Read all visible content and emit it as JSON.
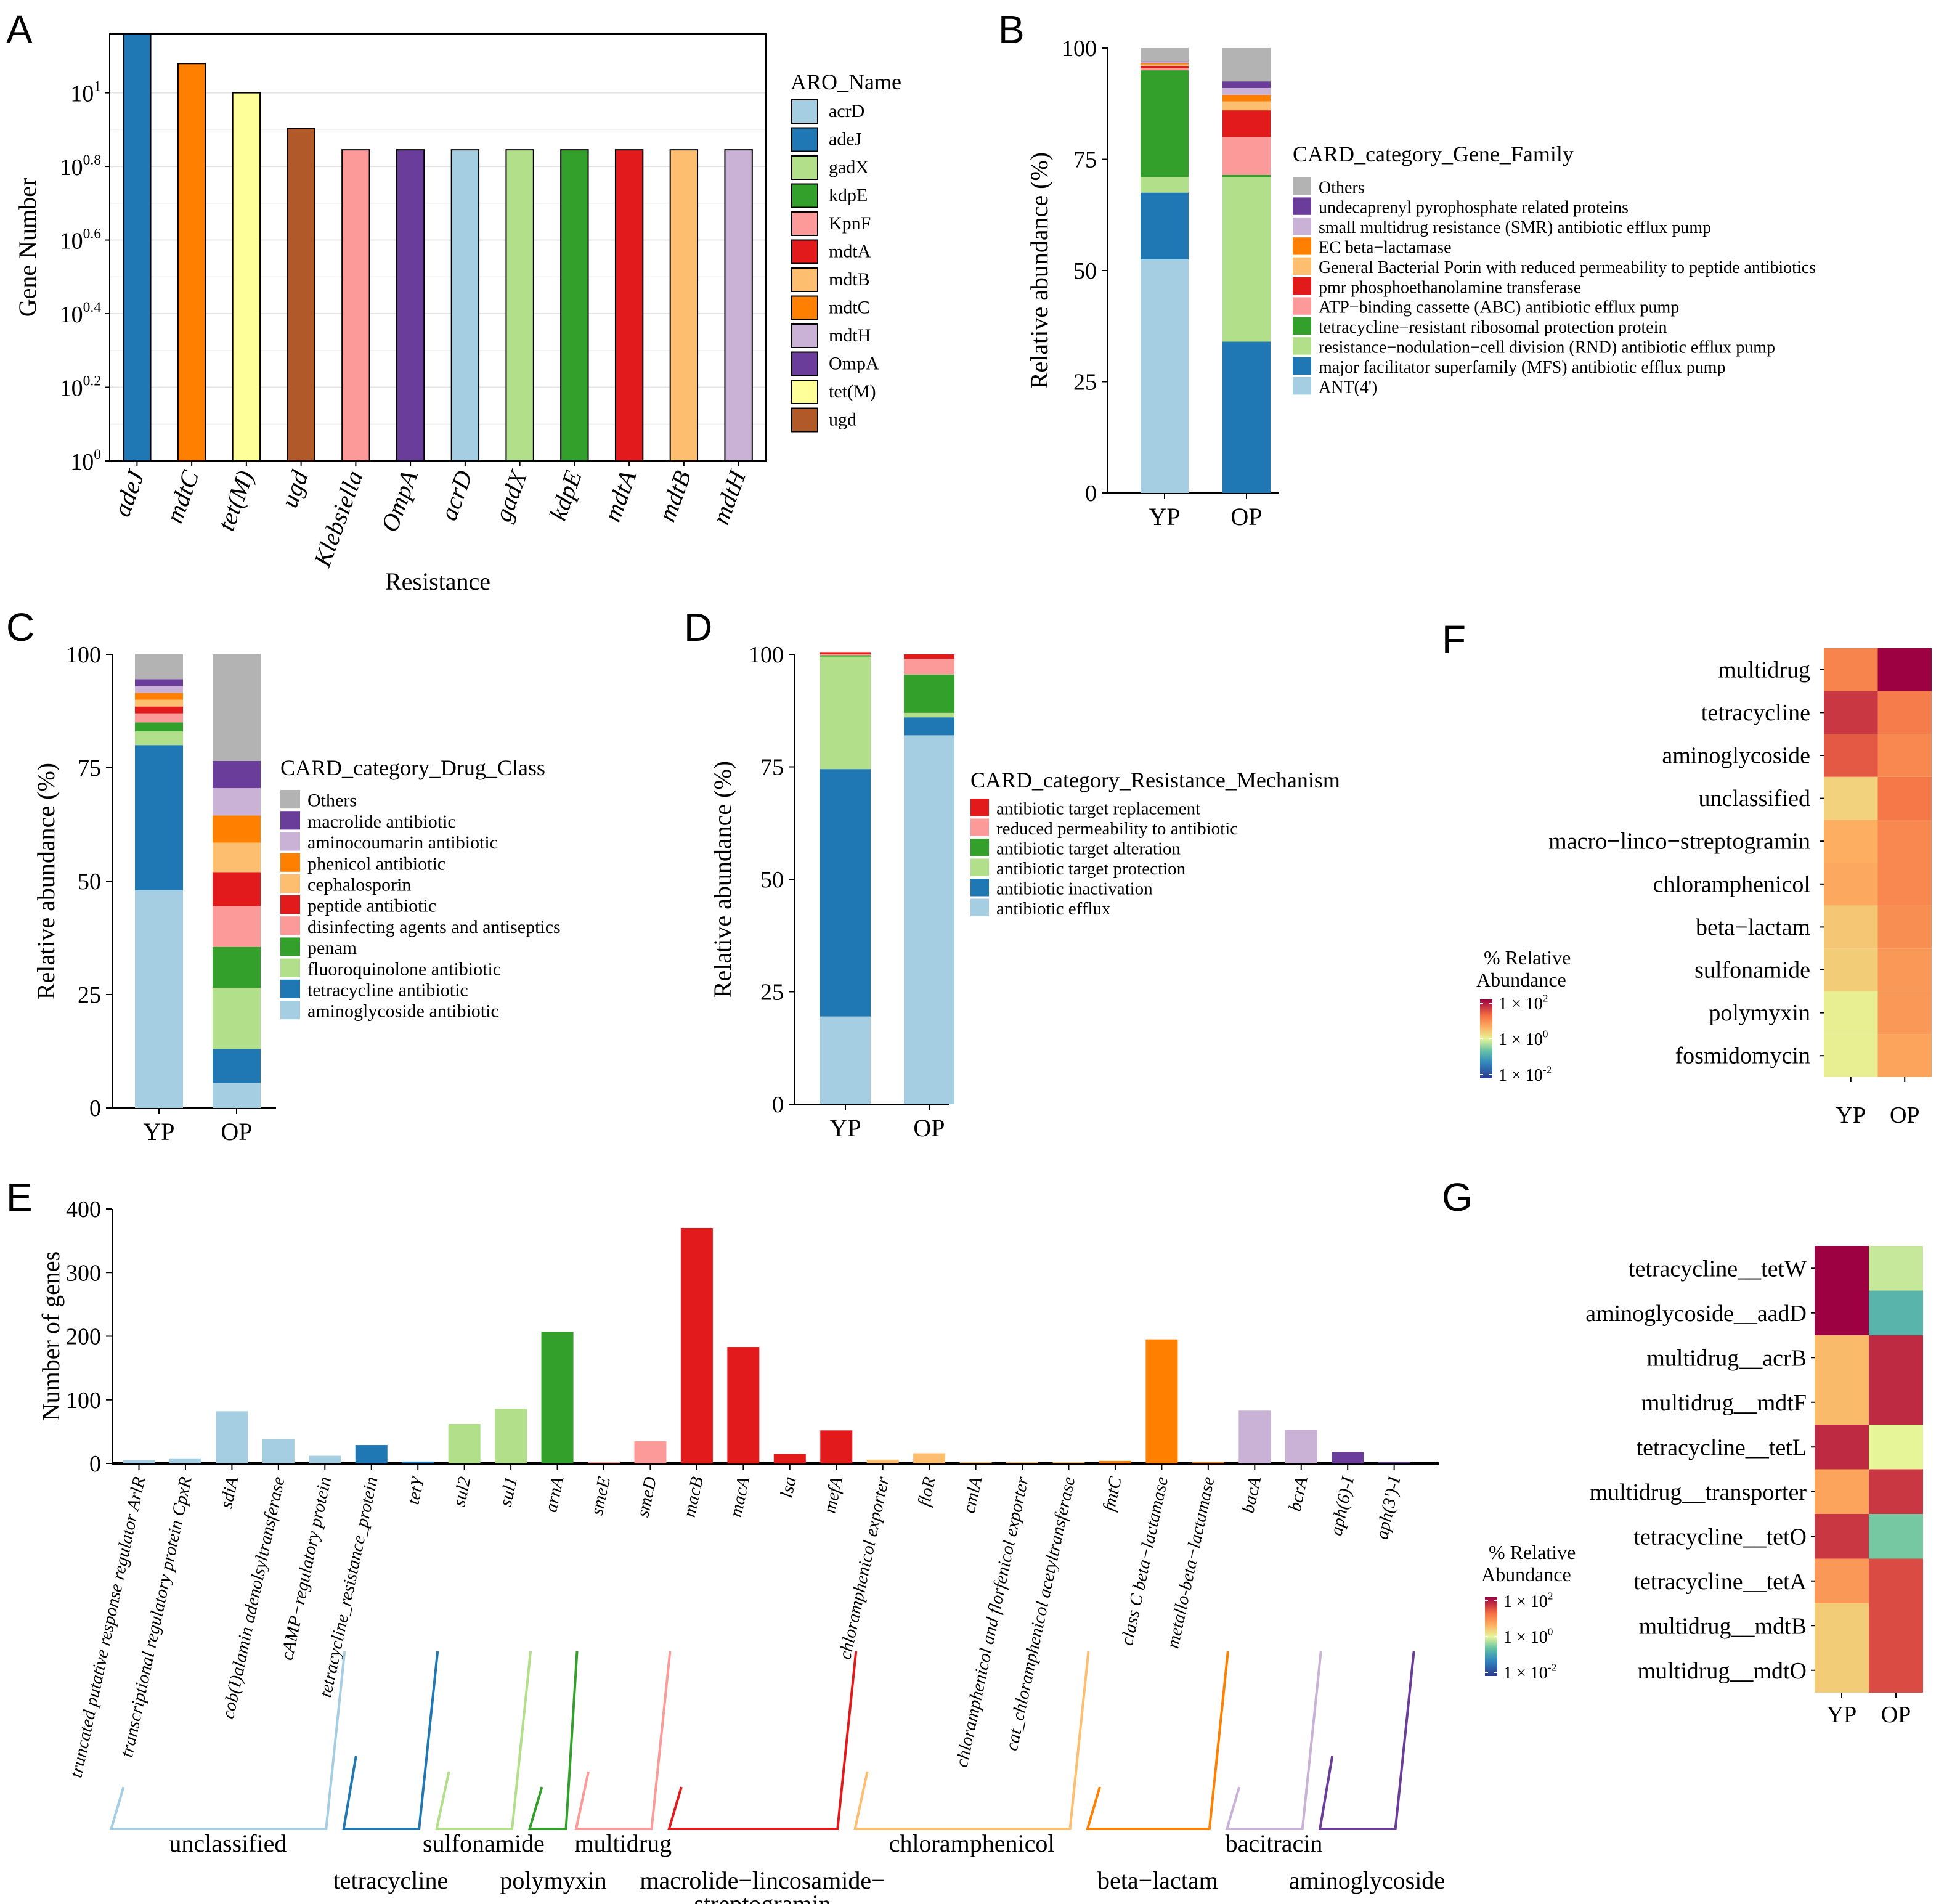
{
  "figure_labels": [
    "A",
    "B",
    "C",
    "D",
    "E",
    "F",
    "G"
  ],
  "chart_data": [
    {
      "panel": "A",
      "type": "bar",
      "xlabel": "Resistance",
      "ylabel": "Gene Number",
      "yscale": "log10",
      "ylim_exp": [
        0,
        1.16
      ],
      "yticks": [
        {
          "base": "10",
          "exp": "0"
        },
        {
          "base": "10",
          "exp": "0.2"
        },
        {
          "base": "10",
          "exp": "0.4"
        },
        {
          "base": "10",
          "exp": "0.6"
        },
        {
          "base": "10",
          "exp": "0.8"
        },
        {
          "base": "10",
          "exp": "1"
        }
      ],
      "categories": [
        "adeJ",
        "mdtC",
        "tet(M)",
        "ugd",
        "Klebsiella",
        "OmpA",
        "acrD",
        "gadX",
        "kdpE",
        "mdtA",
        "mdtB",
        "mdtH"
      ],
      "values": [
        15,
        12,
        10,
        8,
        7,
        7,
        7,
        7,
        7,
        7,
        7,
        7
      ],
      "bar_keys": [
        "adeJ",
        "mdtC",
        "tet(M)",
        "ugd",
        "KpnF",
        "OmpA",
        "acrD",
        "gadX",
        "kdpE",
        "mdtA",
        "mdtB",
        "mdtH"
      ],
      "legend_title": "ARO_Name",
      "legend": [
        {
          "name": "acrD",
          "color": "#a6cee3"
        },
        {
          "name": "adeJ",
          "color": "#1f78b4"
        },
        {
          "name": "gadX",
          "color": "#b2df8a"
        },
        {
          "name": "kdpE",
          "color": "#33a02c"
        },
        {
          "name": "KpnF",
          "color": "#fb9a99"
        },
        {
          "name": "mdtA",
          "color": "#e31a1c"
        },
        {
          "name": "mdtB",
          "color": "#fdbf6f"
        },
        {
          "name": "mdtC",
          "color": "#ff7f00"
        },
        {
          "name": "mdtH",
          "color": "#cab2d6"
        },
        {
          "name": "OmpA",
          "color": "#6a3d9a"
        },
        {
          "name": "tet(M)",
          "color": "#ffff99"
        },
        {
          "name": "ugd",
          "color": "#b15928"
        }
      ]
    },
    {
      "panel": "B",
      "type": "stacked_bar",
      "ylabel": "Relative abundance (%)",
      "ylim": [
        0,
        100
      ],
      "yticks": [
        0,
        25,
        50,
        75,
        100
      ],
      "categories": [
        "YP",
        "OP"
      ],
      "legend_title": "CARD_category_Gene_Family",
      "series": [
        {
          "name": "ANT(4')",
          "color": "#a6cee3",
          "values": [
            52.5,
            0
          ]
        },
        {
          "name": "major facilitator superfamily (MFS) antibiotic efflux pump",
          "color": "#1f78b4",
          "values": [
            15,
            34
          ]
        },
        {
          "name": "resistance−nodulation−cell division (RND) antibiotic efflux pump",
          "color": "#b2df8a",
          "values": [
            3.5,
            37
          ]
        },
        {
          "name": "tetracycline−resistant ribosomal protection protein",
          "color": "#33a02c",
          "values": [
            24,
            0.5
          ]
        },
        {
          "name": "ATP−binding cassette (ABC) antibiotic efflux pump",
          "color": "#fb9a99",
          "values": [
            0.5,
            8.5
          ]
        },
        {
          "name": "pmr phosphoethanolamine transferase",
          "color": "#e31a1c",
          "values": [
            0.5,
            6
          ]
        },
        {
          "name": "General Bacterial Porin with reduced permeability to peptide antibiotics",
          "color": "#fdbf6f",
          "values": [
            0.3,
            2
          ]
        },
        {
          "name": "EC beta−lactamase",
          "color": "#ff7f00",
          "values": [
            0.3,
            1.5
          ]
        },
        {
          "name": "small multidrug resistance (SMR) antibiotic efflux pump",
          "color": "#cab2d6",
          "values": [
            0.2,
            1.5
          ]
        },
        {
          "name": "undecaprenyl pyrophosphate related proteins",
          "color": "#6a3d9a",
          "values": [
            0.2,
            1.5
          ]
        },
        {
          "name": "Others",
          "color": "#b3b3b3",
          "values": [
            3,
            7.5
          ]
        }
      ]
    },
    {
      "panel": "C",
      "type": "stacked_bar",
      "ylabel": "Relative abundance (%)",
      "ylim": [
        0,
        100
      ],
      "yticks": [
        0,
        25,
        50,
        75,
        100
      ],
      "categories": [
        "YP",
        "OP"
      ],
      "legend_title": "CARD_category_Drug_Class",
      "series": [
        {
          "name": "aminoglycoside antibiotic",
          "color": "#a6cee3",
          "values": [
            48,
            5.5
          ]
        },
        {
          "name": "tetracycline antibiotic",
          "color": "#1f78b4",
          "values": [
            32,
            7.5
          ]
        },
        {
          "name": "fluoroquinolone antibiotic",
          "color": "#b2df8a",
          "values": [
            3,
            13.5
          ]
        },
        {
          "name": "penam",
          "color": "#33a02c",
          "values": [
            2,
            9
          ]
        },
        {
          "name": "disinfecting agents and antiseptics",
          "color": "#fb9a99",
          "values": [
            2,
            9
          ]
        },
        {
          "name": "peptide antibiotic",
          "color": "#e31a1c",
          "values": [
            1.5,
            7.5
          ]
        },
        {
          "name": "cephalosporin",
          "color": "#fdbf6f",
          "values": [
            1.5,
            6.5
          ]
        },
        {
          "name": "phenicol antibiotic",
          "color": "#ff7f00",
          "values": [
            1.5,
            6
          ]
        },
        {
          "name": "aminocoumarin antibiotic",
          "color": "#cab2d6",
          "values": [
            1.5,
            6
          ]
        },
        {
          "name": "macrolide antibiotic",
          "color": "#6a3d9a",
          "values": [
            1.5,
            6
          ]
        },
        {
          "name": "Others",
          "color": "#b3b3b3",
          "values": [
            5.5,
            23.5
          ]
        }
      ]
    },
    {
      "panel": "D",
      "type": "stacked_bar",
      "ylabel": "Relative abundance (%)",
      "ylim": [
        0,
        100
      ],
      "yticks": [
        0,
        25,
        50,
        75,
        100
      ],
      "categories": [
        "YP",
        "OP"
      ],
      "legend_title": "CARD_category_Resistance_Mechanism",
      "series": [
        {
          "name": "antibiotic efflux",
          "color": "#a6cee3",
          "values": [
            19.5,
            82
          ]
        },
        {
          "name": "antibiotic inactivation",
          "color": "#1f78b4",
          "values": [
            55,
            4
          ]
        },
        {
          "name": "antibiotic target protection",
          "color": "#b2df8a",
          "values": [
            25,
            1
          ]
        },
        {
          "name": "antibiotic target alteration",
          "color": "#33a02c",
          "values": [
            0.3,
            8.5
          ]
        },
        {
          "name": "reduced permeability to antibiotic",
          "color": "#fb9a99",
          "values": [
            0.2,
            3.5
          ]
        },
        {
          "name": "antibiotic target replacement",
          "color": "#e31a1c",
          "values": [
            0.5,
            1
          ]
        }
      ]
    },
    {
      "panel": "E",
      "type": "bar",
      "ylabel": "Number of genes",
      "ylim": [
        0,
        400
      ],
      "yticks": [
        0,
        100,
        200,
        300,
        400
      ],
      "categories": [
        "truncated putative response regulator ArlR",
        "transcriptional regulatory protein CpxR",
        "sdiA",
        "cob(I)alamin adenolsyltransferase",
        "cAMP−regulatory protein",
        "tetracycline_resistance_protein",
        "tetY",
        "sul2",
        "sul1",
        "arnA",
        "smeE",
        "smeD",
        "macB",
        "macA",
        "lsa",
        "mefA",
        "chloramphenicol exporter",
        "floR",
        "cmlA",
        "chloramphenicol and florfenicol exporter",
        "cat_chloramphenicol acetyltransferase",
        "fmtC",
        "class C beta−lactamase",
        "metallo-beta−lactamase",
        "bacA",
        "bcrA",
        "aph(6)-I",
        "aph(3')-I"
      ],
      "values": [
        5,
        8,
        82,
        38,
        12,
        29,
        3,
        62,
        86,
        207,
        2,
        35,
        370,
        183,
        15,
        52,
        6,
        16,
        2,
        2,
        2,
        4,
        195,
        2,
        83,
        53,
        18,
        2
      ],
      "colors": [
        "#a6cee3",
        "#a6cee3",
        "#a6cee3",
        "#a6cee3",
        "#a6cee3",
        "#1f78b4",
        "#1f78b4",
        "#b2df8a",
        "#b2df8a",
        "#33a02c",
        "#fb9a99",
        "#fb9a99",
        "#e31a1c",
        "#e31a1c",
        "#e31a1c",
        "#e31a1c",
        "#fdbf6f",
        "#fdbf6f",
        "#fdbf6f",
        "#fdbf6f",
        "#fdbf6f",
        "#ff7f00",
        "#ff7f00",
        "#ff7f00",
        "#cab2d6",
        "#cab2d6",
        "#6a3d9a",
        "#6a3d9a"
      ],
      "groups": [
        {
          "name": "unclassified",
          "start": 0,
          "end": 4,
          "color": "#a6cee3"
        },
        {
          "name": "tetracycline",
          "start": 5,
          "end": 6,
          "color": "#1f78b4"
        },
        {
          "name": "sulfonamide",
          "start": 7,
          "end": 8,
          "color": "#b2df8a"
        },
        {
          "name": "polymyxin",
          "start": 9,
          "end": 9,
          "color": "#33a02c"
        },
        {
          "name": "multidrug",
          "start": 10,
          "end": 11,
          "color": "#fb9a99"
        },
        {
          "name": "macrolide−lincosamide−",
          "name2": "streptogramin",
          "start": 12,
          "end": 15,
          "color": "#e31a1c"
        },
        {
          "name": "chloramphenicol",
          "start": 16,
          "end": 20,
          "color": "#fdbf6f"
        },
        {
          "name": "beta−lactam",
          "start": 21,
          "end": 23,
          "color": "#ff7f00"
        },
        {
          "name": "bacitracin",
          "start": 24,
          "end": 25,
          "color": "#cab2d6"
        },
        {
          "name": "aminoglycoside",
          "start": 26,
          "end": 27,
          "color": "#6a3d9a"
        }
      ]
    },
    {
      "panel": "F",
      "type": "heatmap",
      "columns": [
        "YP",
        "OP"
      ],
      "rows": [
        "multidrug",
        "tetracycline",
        "aminoglycoside",
        "unclassified",
        "macro−linco−streptogramin",
        "chloramphenicol",
        "beta−lactam",
        "sulfonamide",
        "polymyxin",
        "fosmidomycin"
      ],
      "log10_values": [
        [
          1.0,
          2.05
        ],
        [
          1.6,
          1.05
        ],
        [
          1.35,
          0.95
        ],
        [
          0.3,
          1.1
        ],
        [
          0.6,
          0.95
        ],
        [
          0.65,
          0.95
        ],
        [
          0.4,
          0.9
        ],
        [
          0.35,
          0.8
        ],
        [
          0.05,
          0.8
        ],
        [
          0.05,
          0.7
        ]
      ],
      "colorbar_title": [
        "% Relative",
        "Abundance"
      ],
      "colorbar_ticks": [
        {
          "base": "1 × 10",
          "exp": "2"
        },
        {
          "base": "1 × 10",
          "exp": "0"
        },
        {
          "base": "1 × 10",
          "exp": "-2"
        }
      ]
    },
    {
      "panel": "G",
      "type": "heatmap",
      "columns": [
        "YP",
        "OP"
      ],
      "rows": [
        "tetracycline__tetW",
        "aminoglycoside__aadD",
        "multidrug__acrB",
        "multidrug__mdtF",
        "tetracycline__tetL",
        "multidrug__transporter",
        "tetracycline__tetO",
        "tetracycline__tetA",
        "multidrug__mdtB",
        "multidrug__mdtO"
      ],
      "log10_values": [
        [
          2.0,
          -0.2
        ],
        [
          2.0,
          -0.95
        ],
        [
          0.5,
          1.7
        ],
        [
          0.5,
          1.7
        ],
        [
          1.7,
          0.0
        ],
        [
          0.7,
          1.6
        ],
        [
          1.6,
          -0.7
        ],
        [
          0.8,
          1.45
        ],
        [
          0.35,
          1.45
        ],
        [
          0.35,
          1.45
        ]
      ],
      "colorbar_title": [
        "% Relative",
        "Abundance"
      ],
      "colorbar_ticks": [
        {
          "base": "1 × 10",
          "exp": "2"
        },
        {
          "base": "1 × 10",
          "exp": "0"
        },
        {
          "base": "1 × 10",
          "exp": "-2"
        }
      ]
    }
  ]
}
